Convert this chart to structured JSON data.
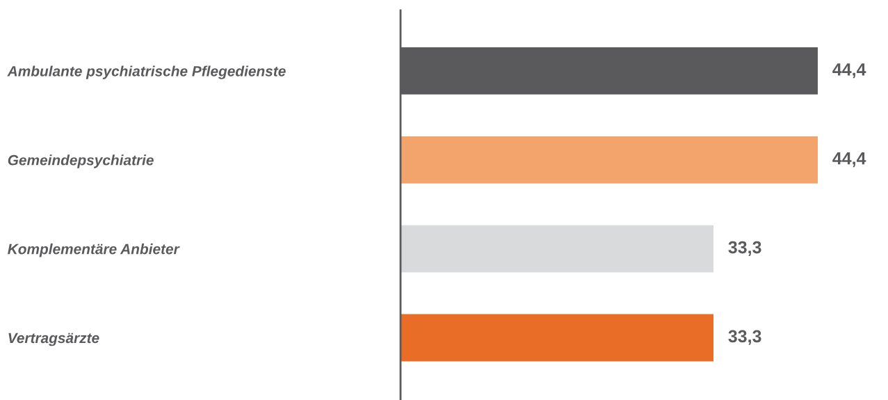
{
  "chart_data": {
    "type": "bar",
    "orientation": "horizontal",
    "categories": [
      "Ambulante psychiatrische Pflegedienste",
      "Gemeindepsychiatrie",
      "Komplementäre Anbieter",
      "Vertragsärzte"
    ],
    "values": [
      44.4,
      44.4,
      33.3,
      33.3
    ],
    "colors": [
      "#5a5a5c",
      "#f3a46c",
      "#d9dadc",
      "#e96d26"
    ],
    "value_labels": [
      "44,4",
      "44,4",
      "33,3",
      "33,3"
    ],
    "tick_labels": "y",
    "grid": false,
    "legend": false
  }
}
